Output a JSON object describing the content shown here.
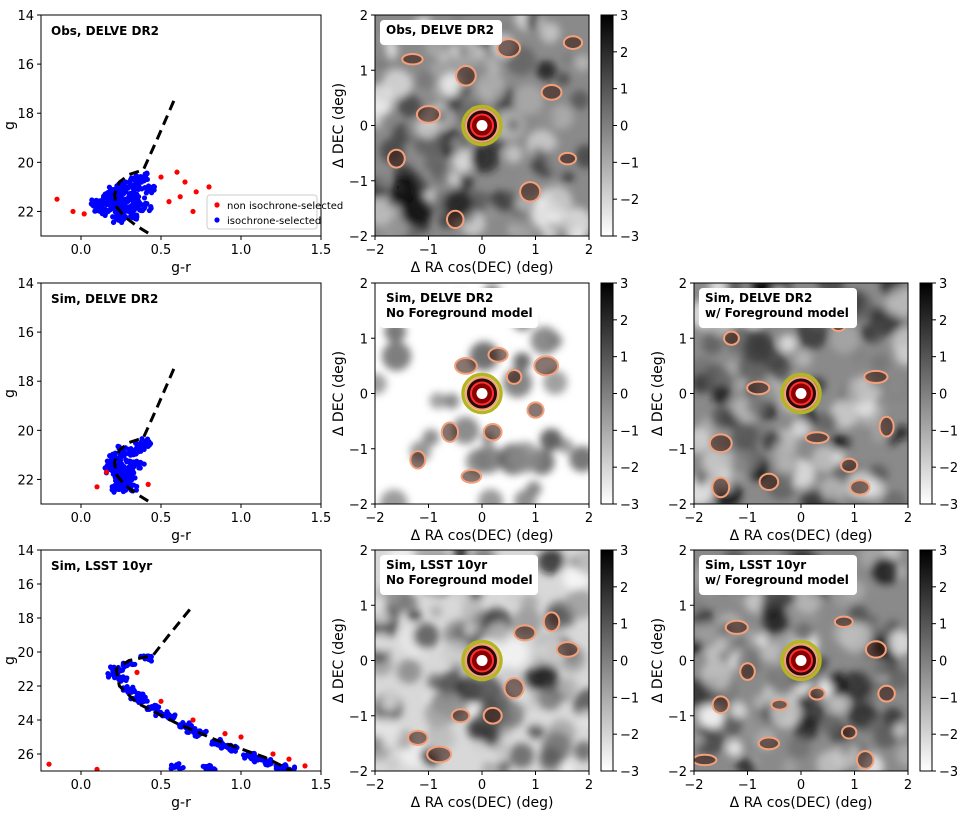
{
  "chart_data": {
    "type": "scatter",
    "panels": [
      {
        "kind": "cmd",
        "label": "Obs, DELVE DR2",
        "xlabel": "g-r",
        "ylabel": "g",
        "xlim": [
          -0.25,
          1.5
        ],
        "ylim": [
          23,
          14
        ],
        "xticks": [
          "0.0",
          "0.5",
          "1.0",
          "1.5"
        ],
        "yticks": [
          "14",
          "16",
          "18",
          "20",
          "22"
        ],
        "show_xtick_labels": true,
        "legend": {
          "position": "lower-right",
          "entries": [
            "non isochrone-selected",
            "isochrone-selected"
          ]
        },
        "isochrone": [
          [
            0.58,
            17.5
          ],
          [
            0.48,
            19.0
          ],
          [
            0.39,
            20.3
          ],
          [
            0.3,
            20.5
          ],
          [
            0.24,
            20.8
          ],
          [
            0.21,
            21.3
          ],
          [
            0.22,
            21.8
          ],
          [
            0.27,
            22.2
          ],
          [
            0.35,
            22.6
          ],
          [
            0.45,
            23.0
          ]
        ],
        "series": [
          {
            "color": "#0000ff",
            "points": [
              [
                0.2,
                21.6
              ],
              [
                0.22,
                21.8
              ],
              [
                0.25,
                22.0
              ],
              [
                0.18,
                21.4
              ],
              [
                0.28,
                21.2
              ],
              [
                0.3,
                21.9
              ],
              [
                0.15,
                21.7
              ],
              [
                0.33,
                21.0
              ],
              [
                0.26,
                22.1
              ],
              [
                0.21,
                21.1
              ],
              [
                0.35,
                20.8
              ],
              [
                0.12,
                21.9
              ],
              [
                0.38,
                20.6
              ],
              [
                0.24,
                21.5
              ],
              [
                0.29,
                21.6
              ],
              [
                0.17,
                22.0
              ],
              [
                0.31,
                22.2
              ],
              [
                0.36,
                21.4
              ],
              [
                0.4,
                21.8
              ],
              [
                0.1,
                21.6
              ],
              [
                0.27,
                20.9
              ],
              [
                0.23,
                22.3
              ],
              [
                0.19,
                21.2
              ],
              [
                0.34,
                21.7
              ],
              [
                0.42,
                21.1
              ]
            ]
          },
          {
            "color": "#ff0000",
            "points": [
              [
                -0.15,
                21.5
              ],
              [
                0.65,
                20.8
              ],
              [
                0.72,
                21.2
              ],
              [
                0.8,
                21.0
              ],
              [
                0.55,
                21.6
              ],
              [
                -0.05,
                22.0
              ],
              [
                0.6,
                20.4
              ],
              [
                0.85,
                21.7
              ],
              [
                0.7,
                22.0
              ],
              [
                0.5,
                20.6
              ],
              [
                0.02,
                22.1
              ],
              [
                0.62,
                21.4
              ]
            ]
          }
        ]
      },
      {
        "kind": "map",
        "label": "Obs, DELVE DR2",
        "xlabel": "Δ RA cos(DEC) (deg)",
        "ylabel": "Δ DEC (deg)",
        "xlim": [
          -2,
          2
        ],
        "ylim": [
          -2,
          2
        ],
        "xticks": [
          "−2",
          "−1",
          "0",
          "1",
          "2"
        ],
        "yticks": [
          "2",
          "1",
          "0",
          "−1",
          "−2"
        ],
        "colorbar_ticks": [
          "3",
          "2",
          "1",
          "0",
          "−1",
          "−2",
          "−3"
        ],
        "contours": [
          [
            -1.3,
            1.2
          ],
          [
            0.5,
            1.4
          ],
          [
            1.3,
            0.6
          ],
          [
            -1.6,
            -0.6
          ],
          [
            0.9,
            -1.2
          ],
          [
            -0.5,
            -1.7
          ],
          [
            1.7,
            1.5
          ],
          [
            -0.3,
            0.9
          ],
          [
            1.6,
            -0.6
          ],
          [
            -1.0,
            0.2
          ]
        ]
      },
      {
        "kind": "cmd",
        "label": "Sim, DELVE DR2",
        "xlabel": "g-r",
        "ylabel": "g",
        "xlim": [
          -0.25,
          1.5
        ],
        "ylim": [
          23,
          14
        ],
        "xticks": [
          "0.0",
          "0.5",
          "1.0",
          "1.5"
        ],
        "yticks": [
          "14",
          "16",
          "18",
          "20",
          "22"
        ],
        "show_xtick_labels": true,
        "isochrone": [
          [
            0.58,
            17.5
          ],
          [
            0.48,
            19.0
          ],
          [
            0.39,
            20.3
          ],
          [
            0.3,
            20.5
          ],
          [
            0.24,
            20.8
          ],
          [
            0.21,
            21.3
          ],
          [
            0.22,
            21.8
          ],
          [
            0.27,
            22.2
          ],
          [
            0.35,
            22.6
          ],
          [
            0.45,
            23.0
          ]
        ],
        "series": [
          {
            "color": "#0000ff",
            "points": [
              [
                0.2,
                21.4
              ],
              [
                0.22,
                21.8
              ],
              [
                0.25,
                22.0
              ],
              [
                0.28,
                21.2
              ],
              [
                0.3,
                21.9
              ],
              [
                0.33,
                20.9
              ],
              [
                0.26,
                22.2
              ],
              [
                0.21,
                21.1
              ],
              [
                0.35,
                20.7
              ],
              [
                0.38,
                20.6
              ],
              [
                0.24,
                21.5
              ],
              [
                0.29,
                21.6
              ],
              [
                0.31,
                22.3
              ],
              [
                0.36,
                21.4
              ],
              [
                0.4,
                20.5
              ],
              [
                0.27,
                20.8
              ],
              [
                0.23,
                22.4
              ],
              [
                0.19,
                21.6
              ]
            ]
          },
          {
            "color": "#ff0000",
            "points": [
              [
                0.1,
                22.3
              ],
              [
                0.42,
                22.2
              ],
              [
                0.16,
                21.7
              ]
            ]
          }
        ]
      },
      {
        "kind": "map",
        "label": "Sim, DELVE DR2\nNo Foreground model",
        "xlabel": "Δ RA cos(DEC) (deg)",
        "ylabel": "Δ DEC (deg)",
        "xlim": [
          -2,
          2
        ],
        "ylim": [
          -2,
          2
        ],
        "xticks": [
          "−2",
          "−1",
          "0",
          "1",
          "2"
        ],
        "yticks": [
          "2",
          "1",
          "0",
          "−1",
          "−2"
        ],
        "colorbar_ticks": [
          "3",
          "2",
          "1",
          "0",
          "−1",
          "−2",
          "−3"
        ],
        "contours": [
          [
            -0.3,
            0.5
          ],
          [
            0.6,
            0.3
          ],
          [
            1.2,
            0.5
          ],
          [
            -0.6,
            -0.7
          ],
          [
            -1.2,
            -1.2
          ],
          [
            0.2,
            -0.7
          ],
          [
            -0.2,
            -1.5
          ],
          [
            1.0,
            -0.3
          ],
          [
            0.3,
            0.7
          ]
        ]
      },
      {
        "kind": "map",
        "label": "Sim, DELVE DR2\nw/ Foreground model",
        "xlabel": "Δ RA cos(DEC) (deg)",
        "ylabel": "Δ DEC (deg)",
        "xlim": [
          -2,
          2
        ],
        "ylim": [
          -2,
          2
        ],
        "xticks": [
          "−2",
          "−1",
          "0",
          "1",
          "2"
        ],
        "yticks": [
          "2",
          "1",
          "0",
          "−1",
          "−2"
        ],
        "colorbar_ticks": [
          "3",
          "2",
          "1",
          "0",
          "−1",
          "−2",
          "−3"
        ],
        "contours": [
          [
            -1.3,
            1.0
          ],
          [
            0.7,
            1.3
          ],
          [
            1.4,
            0.3
          ],
          [
            -1.5,
            -0.9
          ],
          [
            0.9,
            -1.3
          ],
          [
            -0.6,
            -1.6
          ],
          [
            1.6,
            -0.6
          ],
          [
            -0.8,
            0.1
          ],
          [
            -1.5,
            -1.7
          ],
          [
            0.3,
            -0.8
          ],
          [
            1.1,
            -1.7
          ],
          [
            -0.2,
            1.5
          ]
        ]
      },
      {
        "kind": "cmd",
        "label": "Sim, LSST 10yr",
        "xlabel": "g-r",
        "ylabel": "g",
        "xlim": [
          -0.25,
          1.5
        ],
        "ylim": [
          27,
          14
        ],
        "xticks": [
          "0.0",
          "0.5",
          "1.0",
          "1.5"
        ],
        "yticks": [
          "14",
          "16",
          "18",
          "20",
          "22",
          "24",
          "26"
        ],
        "show_xtick_labels": true,
        "isochrone": [
          [
            0.68,
            17.5
          ],
          [
            0.55,
            19.0
          ],
          [
            0.45,
            20.2
          ],
          [
            0.3,
            20.5
          ],
          [
            0.22,
            21.0
          ],
          [
            0.24,
            22.0
          ],
          [
            0.35,
            23.0
          ],
          [
            0.6,
            24.2
          ],
          [
            0.85,
            25.2
          ],
          [
            1.15,
            26.2
          ],
          [
            1.32,
            27.0
          ]
        ],
        "series": [
          {
            "color": "#0000ff",
            "points": [
              [
                0.22,
                21.0
              ],
              [
                0.25,
                21.6
              ],
              [
                0.3,
                22.2
              ],
              [
                0.38,
                22.8
              ],
              [
                0.45,
                23.3
              ],
              [
                0.55,
                23.8
              ],
              [
                0.65,
                24.3
              ],
              [
                0.75,
                24.8
              ],
              [
                0.85,
                25.3
              ],
              [
                0.95,
                25.7
              ],
              [
                1.05,
                26.1
              ],
              [
                1.15,
                26.5
              ],
              [
                1.25,
                26.8
              ],
              [
                0.2,
                21.3
              ],
              [
                0.35,
                22.6
              ],
              [
                0.5,
                23.6
              ],
              [
                0.7,
                24.6
              ],
              [
                0.9,
                25.5
              ],
              [
                1.1,
                26.3
              ],
              [
                1.3,
                26.9
              ],
              [
                0.4,
                20.4
              ],
              [
                0.3,
                20.7
              ],
              [
                0.6,
                26.7
              ],
              [
                0.8,
                26.8
              ]
            ]
          },
          {
            "color": "#ff0000",
            "points": [
              [
                -0.2,
                26.6
              ],
              [
                1.4,
                26.7
              ],
              [
                1.2,
                26.0
              ],
              [
                0.9,
                24.8
              ],
              [
                0.7,
                24.0
              ],
              [
                1.0,
                25.0
              ],
              [
                1.3,
                26.3
              ],
              [
                0.5,
                22.9
              ],
              [
                0.35,
                21.2
              ],
              [
                0.1,
                26.9
              ]
            ]
          }
        ]
      },
      {
        "kind": "map",
        "label": "Sim, LSST 10yr\nNo Foreground model",
        "xlabel": "Δ RA cos(DEC) (deg)",
        "ylabel": "Δ DEC (deg)",
        "xlim": [
          -2,
          2
        ],
        "ylim": [
          -2,
          2
        ],
        "xticks": [
          "−2",
          "−1",
          "0",
          "1",
          "2"
        ],
        "yticks": [
          "2",
          "1",
          "0",
          "−1",
          "−2"
        ],
        "colorbar_ticks": [
          "3",
          "2",
          "1",
          "0",
          "−1",
          "−2",
          "−3"
        ],
        "contours": [
          [
            0.8,
            0.5
          ],
          [
            1.3,
            0.7
          ],
          [
            -0.4,
            -1.0
          ],
          [
            -1.2,
            -1.4
          ],
          [
            0.2,
            -1.0
          ],
          [
            -0.8,
            -1.7
          ],
          [
            0.6,
            -0.5
          ],
          [
            1.6,
            0.2
          ]
        ]
      },
      {
        "kind": "map",
        "label": "Sim, LSST 10yr\nw/ Foreground model",
        "xlabel": "Δ RA cos(DEC) (deg)",
        "ylabel": "Δ DEC (deg)",
        "xlim": [
          -2,
          2
        ],
        "ylim": [
          -2,
          2
        ],
        "xticks": [
          "−2",
          "−1",
          "0",
          "1",
          "2"
        ],
        "yticks": [
          "2",
          "1",
          "0",
          "−1",
          "−2"
        ],
        "colorbar_ticks": [
          "3",
          "2",
          "1",
          "0",
          "−1",
          "−2",
          "−3"
        ],
        "contours": [
          [
            -1.2,
            0.6
          ],
          [
            0.8,
            0.7
          ],
          [
            1.4,
            0.2
          ],
          [
            -1.5,
            -0.8
          ],
          [
            0.9,
            -1.3
          ],
          [
            -0.6,
            -1.5
          ],
          [
            1.6,
            -0.6
          ],
          [
            -0.4,
            -0.8
          ],
          [
            -1.8,
            -1.8
          ],
          [
            0.3,
            -0.6
          ],
          [
            1.2,
            -1.8
          ],
          [
            -1.0,
            -0.2
          ]
        ]
      }
    ]
  }
}
